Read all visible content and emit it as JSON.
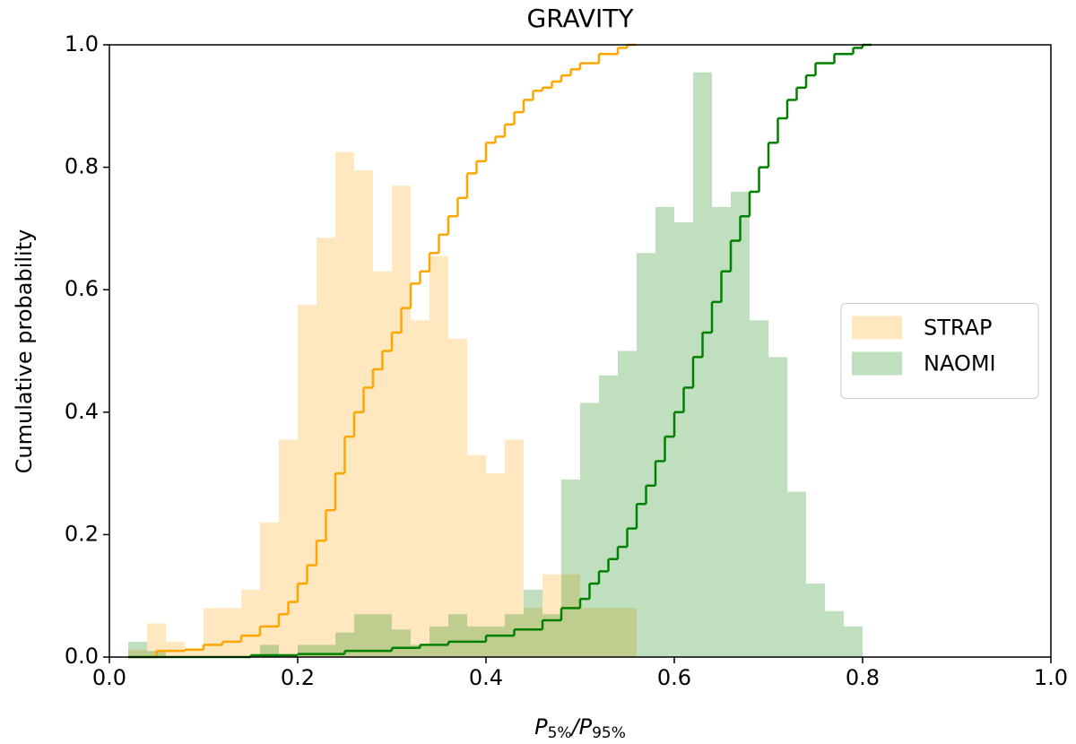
{
  "chart_data": {
    "type": "histogram",
    "title": "GRAVITY",
    "xlabel": [
      "P",
      "5%",
      "/P",
      "95%"
    ],
    "ylabel": "Cumulative probability",
    "xlim": [
      0,
      1
    ],
    "ylim": [
      0,
      1
    ],
    "xticks": [
      {
        "value": 0,
        "label": "0.0"
      },
      0.2,
      0.4,
      0.6,
      0.8,
      {
        "value": 1,
        "label": "1.0"
      }
    ],
    "yticks": [
      {
        "value": 0,
        "label": "0.0"
      },
      0.2,
      0.4,
      0.6,
      0.8,
      {
        "value": 1,
        "label": "1.0"
      }
    ],
    "legend": "center right",
    "bins": [
      0.02,
      0.04,
      0.06,
      0.08,
      0.1,
      0.12,
      0.14,
      0.16,
      0.18,
      0.2,
      0.22,
      0.24,
      0.26,
      0.28,
      0.3,
      0.32,
      0.34,
      0.36,
      0.38,
      0.4,
      0.42,
      0.44,
      0.46,
      0.48,
      0.5,
      0.52,
      0.54,
      0.56,
      0.58,
      0.6,
      0.62,
      0.64,
      0.66,
      0.68,
      0.7,
      0.72,
      0.74,
      0.76,
      0.78,
      0.8
    ],
    "series": [
      {
        "type": "histogram",
        "name": "STRAP",
        "color": "#ffa500",
        "alpha": 0.25,
        "values": [
          0.012,
          0.055,
          0.025,
          0.012,
          0.08,
          0.08,
          0.11,
          0.22,
          0.355,
          0.575,
          0.685,
          0.825,
          0.795,
          0.63,
          0.77,
          0.55,
          0.655,
          0.52,
          0.33,
          0.3,
          0.355,
          0.08,
          0.135,
          0.135,
          0.08,
          0.08,
          0.08,
          0,
          0,
          0,
          0,
          0,
          0,
          0,
          0,
          0,
          0,
          0,
          0
        ]
      },
      {
        "type": "histogram",
        "name": "NAOMI",
        "color": "#008000",
        "alpha": 0.25,
        "values": [
          0.025,
          0.01,
          0,
          0,
          0,
          0,
          0,
          0.02,
          0,
          0.02,
          0.02,
          0.04,
          0.07,
          0.07,
          0.045,
          0.02,
          0.05,
          0.07,
          0.05,
          0.05,
          0.07,
          0.11,
          0.07,
          0.29,
          0.415,
          0.46,
          0.5,
          0.66,
          0.735,
          0.71,
          0.955,
          0.735,
          0.76,
          0.55,
          0.49,
          0.27,
          0.12,
          0.075,
          0.05
        ]
      },
      {
        "type": "step",
        "color": "#ffa500",
        "x": [
          0.02,
          0.05,
          0.08,
          0.1,
          0.12,
          0.14,
          0.16,
          0.18,
          0.19,
          0.2,
          0.21,
          0.22,
          0.23,
          0.24,
          0.25,
          0.26,
          0.27,
          0.28,
          0.29,
          0.3,
          0.31,
          0.32,
          0.33,
          0.34,
          0.35,
          0.36,
          0.37,
          0.38,
          0.39,
          0.4,
          0.41,
          0.42,
          0.43,
          0.44,
          0.45,
          0.46,
          0.47,
          0.48,
          0.49,
          0.5,
          0.52,
          0.54,
          0.55
        ],
        "values": [
          0,
          0.01,
          0.012,
          0.02,
          0.025,
          0.035,
          0.05,
          0.07,
          0.09,
          0.12,
          0.15,
          0.19,
          0.24,
          0.3,
          0.36,
          0.4,
          0.44,
          0.47,
          0.5,
          0.53,
          0.57,
          0.61,
          0.63,
          0.66,
          0.69,
          0.72,
          0.75,
          0.79,
          0.81,
          0.84,
          0.85,
          0.87,
          0.89,
          0.91,
          0.925,
          0.93,
          0.94,
          0.95,
          0.96,
          0.97,
          0.985,
          0.995,
          1.0
        ]
      },
      {
        "type": "step",
        "color": "#008000",
        "x": [
          0.02,
          0.15,
          0.2,
          0.25,
          0.3,
          0.33,
          0.36,
          0.4,
          0.43,
          0.46,
          0.48,
          0.5,
          0.51,
          0.52,
          0.53,
          0.54,
          0.55,
          0.56,
          0.57,
          0.58,
          0.59,
          0.6,
          0.61,
          0.62,
          0.63,
          0.64,
          0.65,
          0.66,
          0.67,
          0.68,
          0.69,
          0.7,
          0.71,
          0.72,
          0.73,
          0.74,
          0.75,
          0.77,
          0.79,
          0.8
        ],
        "values": [
          0,
          0.003,
          0.005,
          0.01,
          0.015,
          0.02,
          0.025,
          0.035,
          0.045,
          0.06,
          0.08,
          0.095,
          0.12,
          0.14,
          0.16,
          0.18,
          0.21,
          0.25,
          0.28,
          0.32,
          0.36,
          0.4,
          0.44,
          0.49,
          0.53,
          0.58,
          0.63,
          0.68,
          0.72,
          0.76,
          0.8,
          0.84,
          0.88,
          0.91,
          0.93,
          0.95,
          0.97,
          0.985,
          0.995,
          1.0
        ]
      }
    ]
  }
}
